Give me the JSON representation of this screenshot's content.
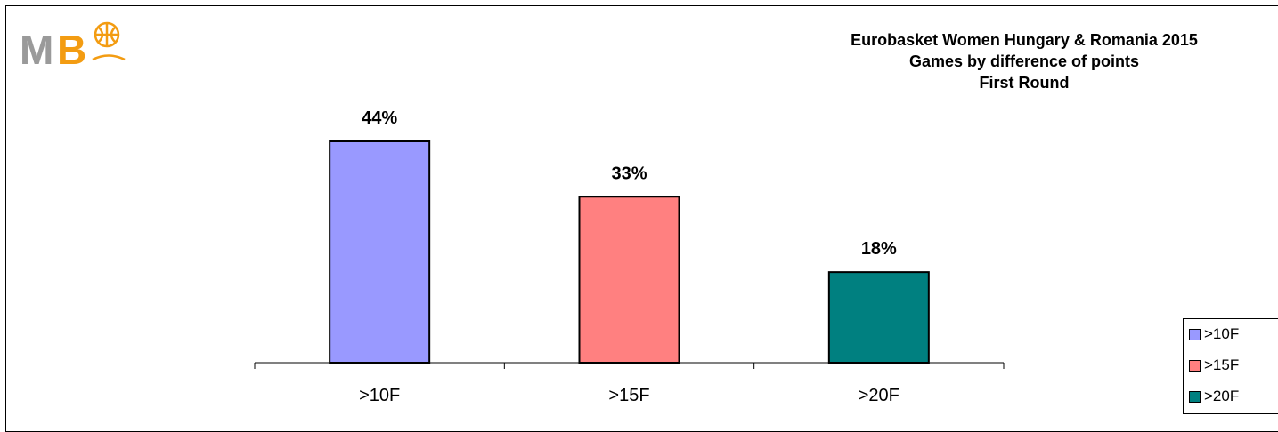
{
  "logo": {
    "text_m": "M",
    "text_b": "B"
  },
  "title_lines": [
    "Eurobasket Women Hungary & Romania 2015",
    "Games by difference of points",
    "First Round"
  ],
  "colors": {
    "series_1": "#9999ff",
    "series_2": "#ff8080",
    "series_3": "#008080"
  },
  "chart_data": {
    "type": "bar",
    "title": "Eurobasket Women Hungary & Romania 2015 Games by difference of points First Round",
    "categories": [
      ">10F",
      ">15F",
      ">20F"
    ],
    "values": [
      44,
      33,
      18
    ],
    "value_labels": [
      "44%",
      "33%",
      "18%"
    ],
    "unit": "%",
    "ylim": [
      0,
      50
    ],
    "grid": false,
    "legend_position": "bottom-right",
    "legend": [
      ">10F",
      ">15F",
      ">20F"
    ]
  }
}
